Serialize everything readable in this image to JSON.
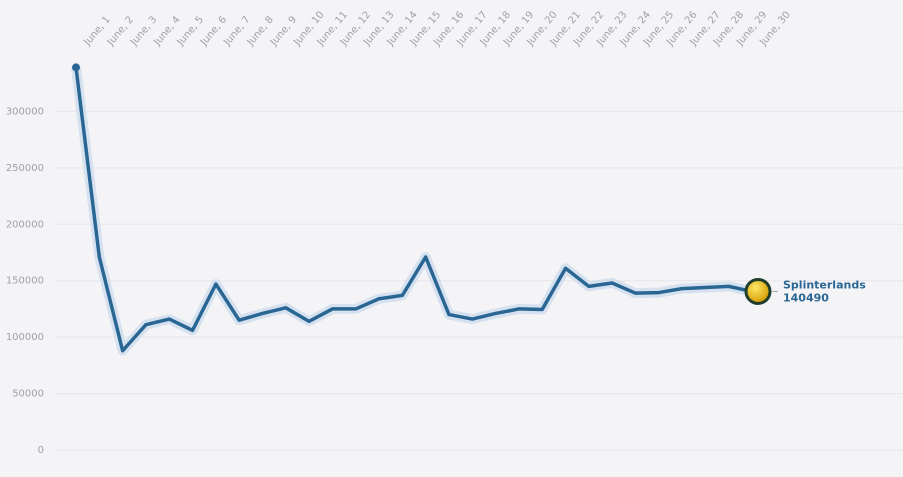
{
  "chart_data": {
    "type": "line",
    "categories": [
      "June, 1",
      "June, 2",
      "June, 3",
      "June, 4",
      "June, 5",
      "June, 6",
      "June, 7",
      "June, 8",
      "June, 9",
      "June, 10",
      "June, 11",
      "June, 12",
      "June, 13",
      "June, 14",
      "June, 15",
      "June, 16",
      "June, 17",
      "June, 18",
      "June, 19",
      "June, 20",
      "June, 21",
      "June, 22",
      "June, 23",
      "June, 24",
      "June, 25",
      "June, 26",
      "June, 27",
      "June, 28",
      "June, 29",
      "June, 30"
    ],
    "series": [
      {
        "name": "Splinterlands",
        "color": "#2a6694",
        "values": [
          339000,
          171000,
          88000,
          111000,
          116000,
          106000,
          147000,
          115000,
          121000,
          126000,
          114000,
          125000,
          125000,
          134000,
          137000,
          171000,
          120000,
          116000,
          121000,
          125000,
          124500,
          161000,
          145000,
          148000,
          139000,
          139500,
          143000,
          144000,
          145000,
          140490
        ]
      }
    ],
    "ylim": [
      0,
      350000
    ],
    "yticks": [
      0,
      50000,
      100000,
      150000,
      200000,
      250000,
      300000
    ],
    "grid": true
  }
}
